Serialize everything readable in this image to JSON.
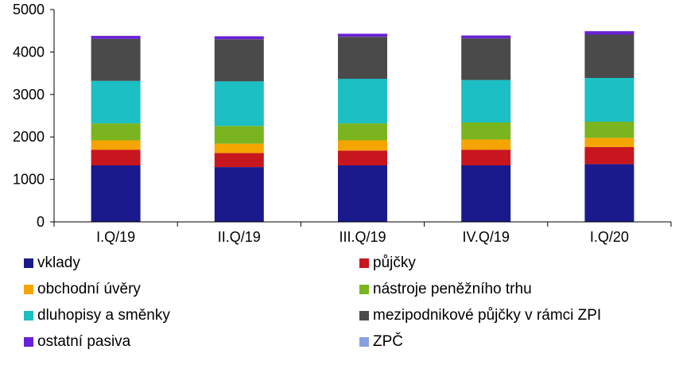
{
  "chart_data": {
    "type": "bar",
    "stacked": true,
    "title": "",
    "xlabel": "",
    "ylabel": "",
    "ylim": [
      0,
      5000
    ],
    "yticks": [
      0,
      1000,
      2000,
      3000,
      4000,
      5000
    ],
    "grid": false,
    "legend_placement": "bottom",
    "categories": [
      "I.Q/19",
      "II.Q/19",
      "III.Q/19",
      "IV.Q/19",
      "I.Q/20"
    ],
    "series": [
      {
        "name": "vklady",
        "color": "#1a1a8c",
        "values": [
          1330,
          1290,
          1330,
          1330,
          1360
        ]
      },
      {
        "name": "půjčky",
        "color": "#c8161e",
        "values": [
          370,
          330,
          350,
          370,
          400
        ]
      },
      {
        "name": "obchodní úvěry",
        "color": "#f5a500",
        "values": [
          220,
          220,
          240,
          240,
          220
        ]
      },
      {
        "name": "nástroje peněžního trhu",
        "color": "#7ab520",
        "values": [
          400,
          420,
          400,
          400,
          380
        ]
      },
      {
        "name": "dluhopisy a směnky",
        "color": "#1cbfc4",
        "values": [
          1000,
          1050,
          1050,
          1000,
          1030
        ]
      },
      {
        "name": "mezipodnikové půjčky v rámci ZPI",
        "color": "#4a4a4a",
        "values": [
          990,
          990,
          990,
          980,
          1020
        ]
      },
      {
        "name": "ostatní pasiva",
        "color": "#6a20d6",
        "values": [
          70,
          70,
          70,
          70,
          80
        ]
      },
      {
        "name": "ZPČ",
        "color": "#8aa0e0",
        "values": [
          0,
          0,
          0,
          0,
          0
        ]
      }
    ]
  }
}
